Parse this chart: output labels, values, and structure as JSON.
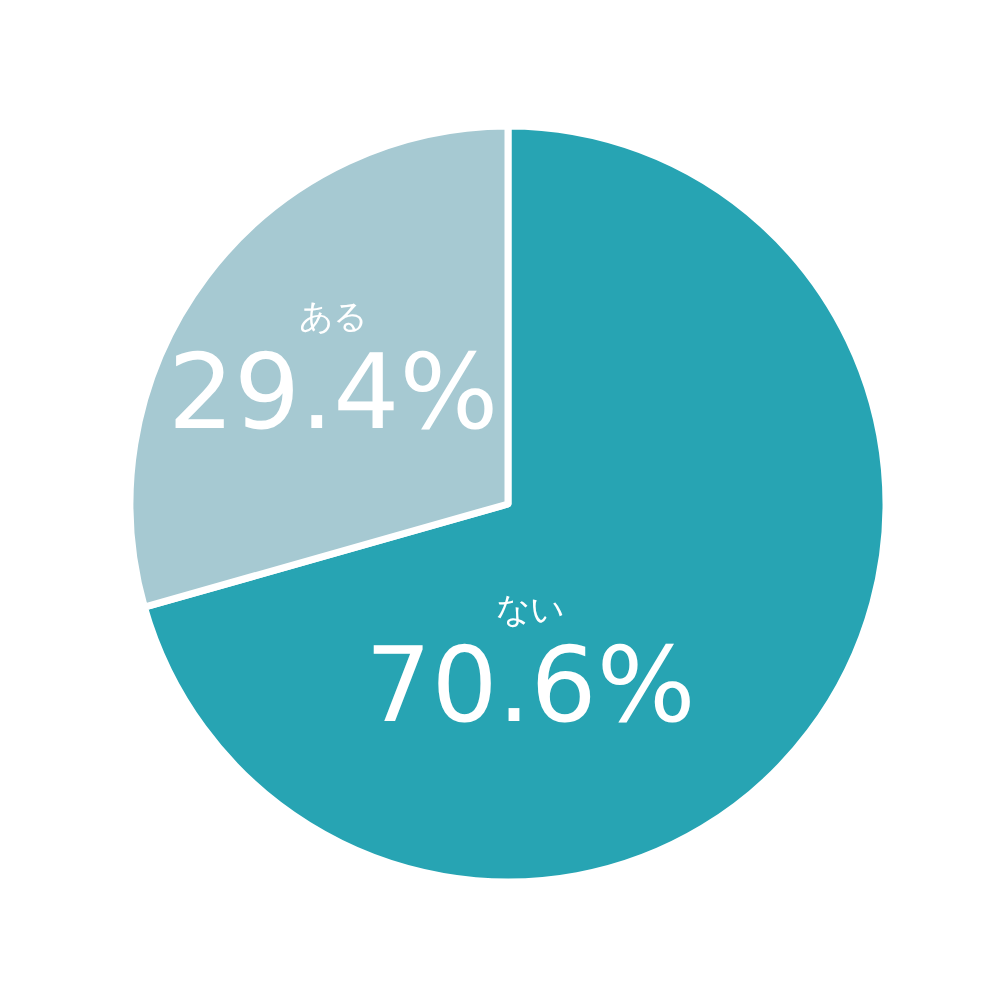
{
  "chart_data": {
    "type": "pie",
    "categories": [
      "ない",
      "ある"
    ],
    "values": [
      70.6,
      29.4
    ],
    "colors": [
      "#27a4b3",
      "#a6c9d2"
    ],
    "value_labels": [
      "70.6%",
      "29.4%"
    ]
  }
}
